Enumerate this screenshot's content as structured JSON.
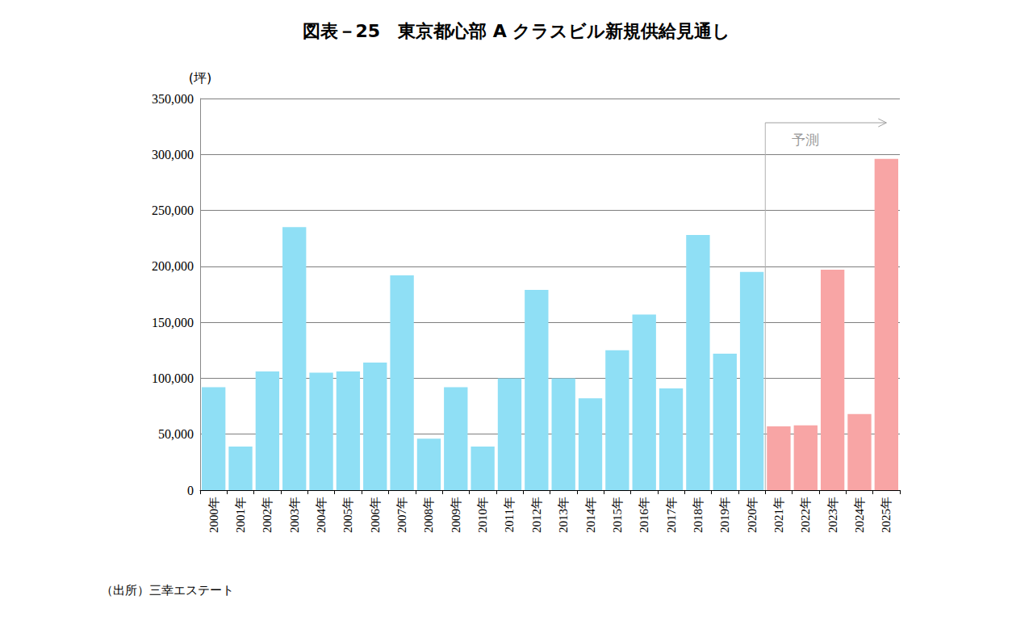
{
  "chart_data": {
    "type": "bar",
    "title": "図表－25　東京都心部 A クラスビル新規供給見通し",
    "y_label": "(坪)",
    "source": "（出所）三幸エステート",
    "categories": [
      "2000年",
      "2001年",
      "2002年",
      "2003年",
      "2004年",
      "2005年",
      "2006年",
      "2007年",
      "2008年",
      "2009年",
      "2010年",
      "2011年",
      "2012年",
      "2013年",
      "2014年",
      "2015年",
      "2016年",
      "2017年",
      "2018年",
      "2019年",
      "2020年",
      "2021年",
      "2022年",
      "2023年",
      "2024年",
      "2025年"
    ],
    "values": [
      92000,
      39000,
      106000,
      235000,
      105000,
      106000,
      114000,
      192000,
      46000,
      92000,
      39000,
      100000,
      179000,
      100000,
      82000,
      125000,
      157000,
      91000,
      228000,
      122000,
      195000,
      57000,
      58000,
      197000,
      68000,
      296000
    ],
    "colors": [
      "#8fdff5",
      "#8fdff5",
      "#8fdff5",
      "#8fdff5",
      "#8fdff5",
      "#8fdff5",
      "#8fdff5",
      "#8fdff5",
      "#8fdff5",
      "#8fdff5",
      "#8fdff5",
      "#8fdff5",
      "#8fdff5",
      "#8fdff5",
      "#8fdff5",
      "#8fdff5",
      "#8fdff5",
      "#8fdff5",
      "#8fdff5",
      "#8fdff5",
      "#8fdff5",
      "#f8a5a5",
      "#f8a5a5",
      "#f8a5a5",
      "#f8a5a5",
      "#f8a5a5"
    ],
    "ylim": [
      0,
      350000
    ],
    "yticks": [
      0,
      {
        "value": 50000,
        "label": "50,000"
      },
      {
        "value": 100000,
        "label": "100,000"
      },
      {
        "value": 150000,
        "label": "150,000"
      },
      {
        "value": 200000,
        "label": "200,000"
      },
      {
        "value": 250000,
        "label": "250,000"
      },
      {
        "value": 300000,
        "label": "300,000"
      },
      {
        "value": 350000,
        "label": "350,000"
      }
    ],
    "grid": true,
    "annotations": [
      {
        "text": "予測",
        "x": "2021年"
      }
    ]
  }
}
